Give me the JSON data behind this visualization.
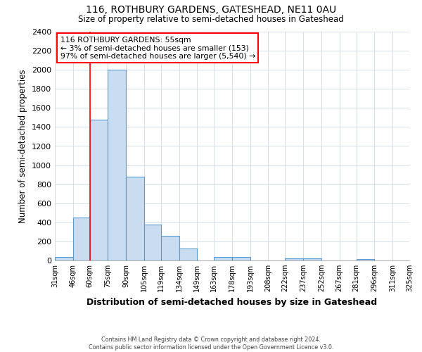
{
  "title_line1": "116, ROTHBURY GARDENS, GATESHEAD, NE11 0AU",
  "title_line2": "Size of property relative to semi-detached houses in Gateshead",
  "xlabel": "Distribution of semi-detached houses by size in Gateshead",
  "ylabel": "Number of semi-detached properties",
  "bin_edges": [
    31,
    46,
    60,
    75,
    90,
    105,
    119,
    134,
    149,
    163,
    178,
    193,
    208,
    222,
    237,
    252,
    267,
    281,
    296,
    311,
    325
  ],
  "bin_labels": [
    "31sqm",
    "46sqm",
    "60sqm",
    "75sqm",
    "90sqm",
    "105sqm",
    "119sqm",
    "134sqm",
    "149sqm",
    "163sqm",
    "178sqm",
    "193sqm",
    "208sqm",
    "222sqm",
    "237sqm",
    "252sqm",
    "267sqm",
    "281sqm",
    "296sqm",
    "311sqm",
    "325sqm"
  ],
  "bar_heights": [
    40,
    450,
    1480,
    2000,
    880,
    375,
    255,
    125,
    0,
    35,
    35,
    0,
    0,
    25,
    20,
    0,
    0,
    15,
    0,
    0
  ],
  "bar_color": "#c9dcf0",
  "bar_edge_color": "#5b9bd5",
  "property_line_x": 60,
  "annotation_text_line1": "116 ROTHBURY GARDENS: 55sqm",
  "annotation_text_line2": "← 3% of semi-detached houses are smaller (153)",
  "annotation_text_line3": "97% of semi-detached houses are larger (5,540) →",
  "ylim": [
    0,
    2400
  ],
  "yticks": [
    0,
    200,
    400,
    600,
    800,
    1000,
    1200,
    1400,
    1600,
    1800,
    2000,
    2200,
    2400
  ],
  "footer_line1": "Contains HM Land Registry data © Crown copyright and database right 2024.",
  "footer_line2": "Contains public sector information licensed under the Open Government Licence v3.0.",
  "bg_color": "#ffffff",
  "grid_color": "#d0d8e8"
}
